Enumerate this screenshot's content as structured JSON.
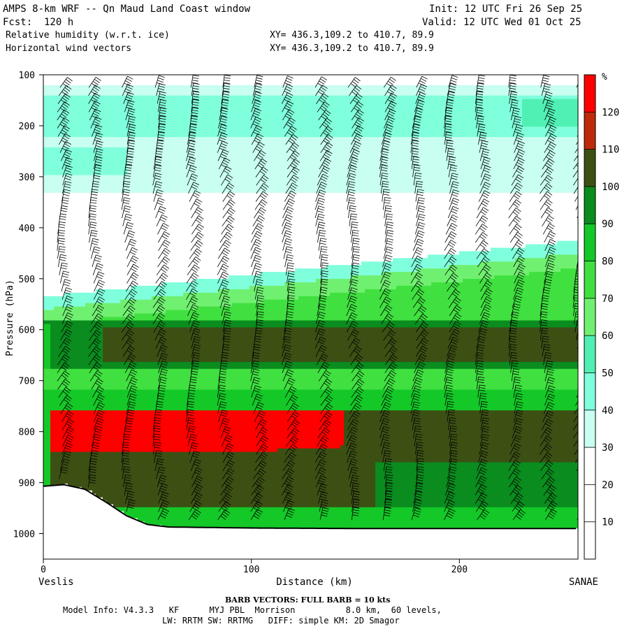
{
  "header": {
    "left_line1": "AMPS 8-km WRF -- Qn Maud Land Coast window",
    "left_line2": "Fcst:  120 h",
    "left_line3": "Relative humidity (w.r.t. ice)",
    "left_line4": "Horizontal wind vectors",
    "xy_line1": "XY= 436.3,109.2 to 410.7, 89.9",
    "xy_line2": "XY= 436.3,109.2 to 410.7, 89.9",
    "init": "Init: 12 UTC Fri 26 Sep 25",
    "valid": "Valid: 12 UTC Wed 01 Oct 25"
  },
  "footer": {
    "barb_note": "BARB VECTORS:  FULL BARB = 10 kts",
    "model_line1": "Model Info: V4.3.3   KF      MYJ PBL  Morrison          8.0 km,  60 levels,",
    "model_line2": "LW: RRTM SW: RRTMG   DIFF: simple KM: 2D Smagor"
  },
  "chart_data": {
    "type": "heatmap",
    "title": "Relative humidity (w.r.t. ice) cross-section with horizontal wind vectors",
    "xlabel": "Distance (km)",
    "ylabel": "Pressure (hPa)",
    "xlim": [
      0,
      257
    ],
    "ylim": [
      1050,
      100
    ],
    "x_ticks": [
      0,
      100,
      200
    ],
    "y_ticks": [
      100,
      200,
      300,
      400,
      500,
      600,
      700,
      800,
      900,
      1000
    ],
    "left_endpoint": "Veslis",
    "right_endpoint": "SANAE",
    "colorbar_unit": "%",
    "colorbar_levels": [
      10,
      20,
      30,
      40,
      50,
      60,
      70,
      80,
      90,
      100,
      110,
      120
    ],
    "colorbar_colors": [
      "#ffffff",
      "#ffffff",
      "#ffffff",
      "#c8fff0",
      "#80ffdc",
      "#50f0b4",
      "#70f070",
      "#40e040",
      "#14c828",
      "#0a8c1e",
      "#3c5014",
      "#be2a0a",
      "#ff0000"
    ],
    "terrain_surface_pressure": {
      "x": [
        0,
        10,
        20,
        30,
        40,
        50,
        60,
        80,
        100,
        150,
        200,
        257
      ],
      "p": [
        907,
        904,
        913,
        938,
        965,
        982,
        987,
        988,
        989,
        990,
        990,
        990
      ]
    },
    "rh_layers": [
      {
        "p_top": 120,
        "p_bottom": 140,
        "rh": 35
      },
      {
        "p_top": 140,
        "p_bottom": 220,
        "rh": 45
      },
      {
        "p_top": 220,
        "p_bottom": 330,
        "rh": 32
      },
      {
        "p_top": 460,
        "p_bottom": 560,
        "rh": 55
      },
      {
        "p_top": 560,
        "p_bottom": 720,
        "rh": 92
      },
      {
        "p_top": 720,
        "p_bottom": 990,
        "rh": 105
      }
    ],
    "rh_max_region": {
      "x_range": [
        0,
        145
      ],
      "p_range": [
        755,
        845
      ],
      "rh": 120
    },
    "wind_barb_columns_x": [
      8,
      23,
      39,
      54,
      70,
      85,
      101,
      116,
      132,
      147,
      163,
      178,
      194,
      209,
      225,
      240,
      256
    ],
    "wind_barb_speed_kts_at_levels": {
      "p": [
        150,
        300,
        450,
        600,
        750,
        900
      ],
      "speed": [
        45,
        35,
        30,
        25,
        30,
        35
      ]
    }
  }
}
